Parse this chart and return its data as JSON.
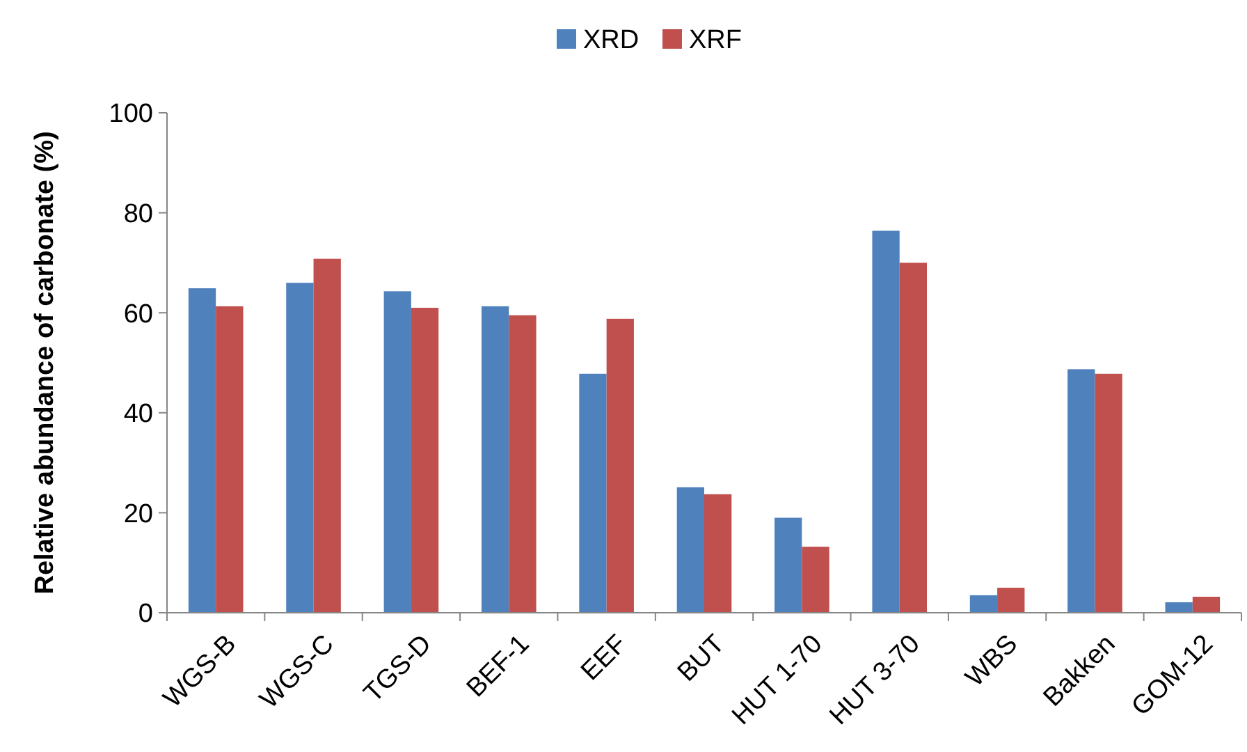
{
  "chart_data": {
    "type": "bar",
    "ylabel": "Relative abundance of carbonate (%)",
    "categories": [
      "WGS-B",
      "WGS-C",
      "TGS-D",
      "BEF-1",
      "EEF",
      "BUT",
      "HUT 1-70",
      "HUT 3-70",
      "WBS",
      "Bakken",
      "GOM-12"
    ],
    "series": [
      {
        "name": "XRD",
        "color": "#4f81bd",
        "values": [
          64.9,
          66.0,
          64.3,
          61.3,
          47.8,
          25.1,
          19.0,
          76.4,
          3.5,
          48.7,
          2.1
        ]
      },
      {
        "name": "XRF",
        "color": "#c0504d",
        "values": [
          61.3,
          70.8,
          61.0,
          59.5,
          58.8,
          23.7,
          13.2,
          70.0,
          5.0,
          47.8,
          3.2
        ]
      }
    ],
    "ylim": [
      0,
      100
    ],
    "yticks": [
      0,
      20,
      40,
      60,
      80,
      100
    ],
    "grid": false,
    "legend": "top"
  }
}
